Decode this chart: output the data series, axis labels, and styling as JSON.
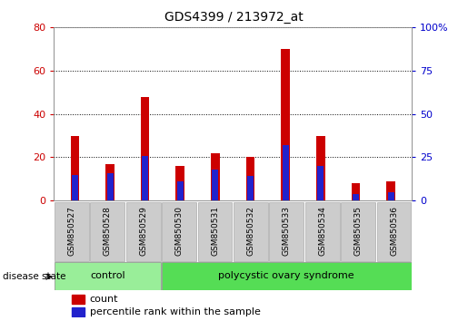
{
  "title": "GDS4399 / 213972_at",
  "samples": [
    "GSM850527",
    "GSM850528",
    "GSM850529",
    "GSM850530",
    "GSM850531",
    "GSM850532",
    "GSM850533",
    "GSM850534",
    "GSM850535",
    "GSM850536"
  ],
  "count_values": [
    30,
    17,
    48,
    16,
    22,
    20,
    70,
    30,
    8,
    9
  ],
  "percentile_values": [
    15,
    16,
    26,
    11,
    18,
    14,
    32,
    20,
    4,
    5
  ],
  "ylim_left": [
    0,
    80
  ],
  "ylim_right": [
    0,
    100
  ],
  "yticks_left": [
    0,
    20,
    40,
    60,
    80
  ],
  "yticks_right": [
    0,
    25,
    50,
    75,
    100
  ],
  "count_color": "#cc0000",
  "percentile_color": "#2222cc",
  "groups": [
    {
      "label": "control",
      "samples": 3,
      "color": "#99ee99"
    },
    {
      "label": "polycystic ovary syndrome",
      "samples": 7,
      "color": "#55dd55"
    }
  ],
  "disease_state_label": "disease state",
  "legend_count": "count",
  "legend_percentile": "percentile rank within the sample",
  "bg_color": "#ffffff",
  "tick_label_color_left": "#cc0000",
  "tick_label_color_right": "#0000cc",
  "right_axis_labels": [
    "0",
    "25",
    "50",
    "75",
    "100%"
  ],
  "bar_width": 0.25,
  "blue_square_size": 0.18
}
